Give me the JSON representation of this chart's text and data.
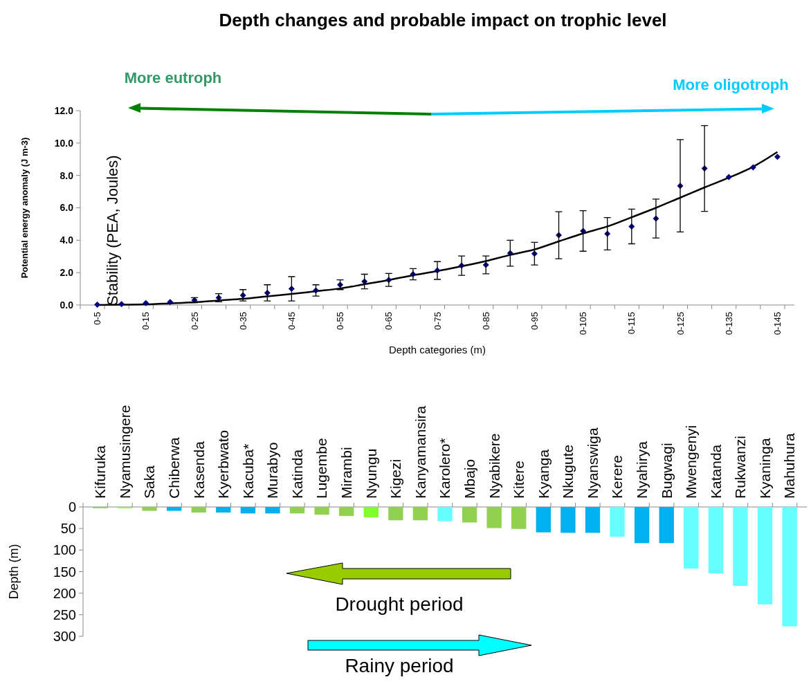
{
  "chart_data": [
    {
      "type": "scatter",
      "title": "Depth changes and probable impact on trophic level",
      "xlabel": "Depth categories (m)",
      "ylabel": "Potential energy anomaly (J m-3)",
      "annotations": [
        "Stability (PEA, Joules)",
        "More eutroph",
        "More oligotroph"
      ],
      "categories": [
        "0-5",
        null,
        "0-15",
        null,
        "0-25",
        null,
        "0-35",
        null,
        "0-45",
        null,
        "0-55",
        null,
        "0-65",
        null,
        "0-75",
        null,
        "0-85",
        null,
        "0-95",
        null,
        "0-105",
        null,
        "0-115",
        null,
        "0-125",
        null,
        "0-135",
        null,
        "0-145"
      ],
      "ylim": [
        0,
        12
      ],
      "yticks": [
        {
          "value": 0,
          "label": "0.0"
        },
        {
          "value": 2,
          "label": "2.0"
        },
        {
          "value": 4,
          "label": "4.0"
        },
        {
          "value": 6,
          "label": "6.0"
        },
        {
          "value": 8,
          "label": "8.0"
        },
        {
          "value": 10,
          "label": "10.0"
        },
        {
          "value": 12,
          "label": "12.0"
        }
      ],
      "series": [
        {
          "color": "#000080",
          "marker": "diamond",
          "values": [
            0.02,
            0.05,
            0.12,
            0.18,
            0.3,
            0.45,
            0.6,
            0.75,
            1.0,
            0.9,
            1.25,
            1.45,
            1.55,
            1.9,
            2.13,
            2.43,
            2.48,
            3.2,
            3.17,
            4.31,
            4.57,
            4.4,
            4.85,
            5.34,
            7.36,
            8.43,
            7.9,
            8.5,
            9.15
          ],
          "errors": [
            null,
            null,
            null,
            null,
            0.15,
            0.25,
            0.35,
            0.5,
            0.75,
            0.35,
            0.3,
            0.45,
            0.4,
            0.35,
            0.55,
            0.6,
            0.55,
            0.8,
            0.7,
            1.45,
            1.25,
            1.0,
            1.07,
            1.2,
            2.85,
            2.65,
            null,
            null,
            null
          ]
        },
        {
          "type": "line",
          "color": "#000000",
          "marker": "none",
          "values": [
            0,
            0.02,
            0.04,
            0.1,
            0.17,
            0.28,
            0.38,
            0.53,
            0.68,
            0.85,
            1.02,
            1.28,
            1.54,
            1.84,
            2.09,
            2.39,
            2.71,
            3.09,
            3.43,
            3.93,
            4.42,
            4.85,
            5.42,
            6.0,
            6.63,
            7.26,
            7.86,
            8.54,
            9.45
          ]
        }
      ]
    },
    {
      "type": "bar",
      "ylabel": "Depth (m)",
      "annotations": [
        "Drought period",
        "Rainy period"
      ],
      "categories": [
        "Kifuruka",
        "Nyamusingere",
        "Saka",
        "Chiberwa",
        "Kasenda",
        "Kyerbwato",
        "Kacuba*",
        "Murabyo",
        "Katinda",
        "Lugembe",
        "Mirambi",
        "Nyungu",
        "Kigezi",
        "Kanyamansira",
        "Karolero*",
        "Mbajo",
        "Nyabikere",
        "Kitere",
        "Kyanga",
        "Nkugute",
        "Nyanswiga",
        "Kerere",
        "Nyahirya",
        "Bugwagi",
        "Mwengenyi",
        "Katanda",
        "Rukwanzi",
        "Kyaninga",
        "Mahuhura"
      ],
      "values": [
        3,
        3,
        9,
        9,
        13,
        13,
        15,
        15,
        15,
        18,
        21,
        24,
        31,
        31,
        33,
        36,
        49,
        51,
        59,
        60,
        60,
        69,
        84,
        84,
        143,
        154,
        183,
        226,
        277
      ],
      "colors": [
        "#92d050",
        "#7fff2a",
        "#92d050",
        "#00b0f0",
        "#92d050",
        "#00b0f0",
        "#00b0f0",
        "#00b0f0",
        "#92d050",
        "#92d050",
        "#92d050",
        "#7fff2a",
        "#92d050",
        "#92d050",
        "#66ffff",
        "#92d050",
        "#92d050",
        "#92d050",
        "#00b0f0",
        "#00b0f0",
        "#00b0f0",
        "#66ffff",
        "#00b0f0",
        "#00b0f0",
        "#66ffff",
        "#66ffff",
        "#66ffff",
        "#66ffff",
        "#66ffff"
      ],
      "ylim": [
        300,
        0
      ],
      "yticks": [
        0,
        50,
        100,
        150,
        200,
        250,
        300
      ]
    }
  ]
}
